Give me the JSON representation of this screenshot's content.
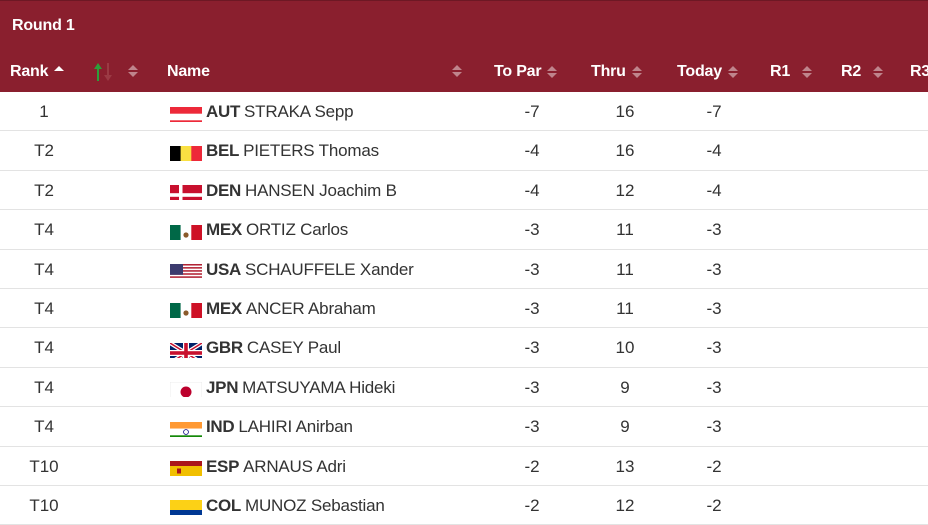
{
  "round_title": "Round 1",
  "columns": {
    "rank": "Rank",
    "name": "Name",
    "to_par": "To Par",
    "thru": "Thru",
    "today": "Today",
    "r1": "R1",
    "r2": "R2",
    "r3": "R3"
  },
  "colors": {
    "header_bg": "#8a1f2e",
    "header_text": "#ffffff",
    "move_up": "#2e9e3a",
    "move_down": "#c0392b"
  },
  "rows": [
    {
      "rank": "1",
      "noc": "AUT",
      "name": "STRAKA Sepp",
      "to_par": "-7",
      "thru": "16",
      "today": "-7",
      "flag": "aut-flag"
    },
    {
      "rank": "T2",
      "noc": "BEL",
      "name": "PIETERS Thomas",
      "to_par": "-4",
      "thru": "16",
      "today": "-4",
      "flag": "bel-flag"
    },
    {
      "rank": "T2",
      "noc": "DEN",
      "name": "HANSEN Joachim B",
      "to_par": "-4",
      "thru": "12",
      "today": "-4",
      "flag": "den-flag"
    },
    {
      "rank": "T4",
      "noc": "MEX",
      "name": "ORTIZ Carlos",
      "to_par": "-3",
      "thru": "11",
      "today": "-3",
      "flag": "mex-flag"
    },
    {
      "rank": "T4",
      "noc": "USA",
      "name": "SCHAUFFELE Xander",
      "to_par": "-3",
      "thru": "11",
      "today": "-3",
      "flag": "usa-flag"
    },
    {
      "rank": "T4",
      "noc": "MEX",
      "name": "ANCER Abraham",
      "to_par": "-3",
      "thru": "11",
      "today": "-3",
      "flag": "mex-flag"
    },
    {
      "rank": "T4",
      "noc": "GBR",
      "name": "CASEY Paul",
      "to_par": "-3",
      "thru": "10",
      "today": "-3",
      "flag": "gbr-flag"
    },
    {
      "rank": "T4",
      "noc": "JPN",
      "name": "MATSUYAMA Hideki",
      "to_par": "-3",
      "thru": "9",
      "today": "-3",
      "flag": "jpn-flag"
    },
    {
      "rank": "T4",
      "noc": "IND",
      "name": "LAHIRI Anirban",
      "to_par": "-3",
      "thru": "9",
      "today": "-3",
      "flag": "ind-flag"
    },
    {
      "rank": "T10",
      "noc": "ESP",
      "name": "ARNAUS Adri",
      "to_par": "-2",
      "thru": "13",
      "today": "-2",
      "flag": "esp-flag"
    },
    {
      "rank": "T10",
      "noc": "COL",
      "name": "MUNOZ Sebastian",
      "to_par": "-2",
      "thru": "12",
      "today": "-2",
      "flag": "col-flag"
    }
  ]
}
